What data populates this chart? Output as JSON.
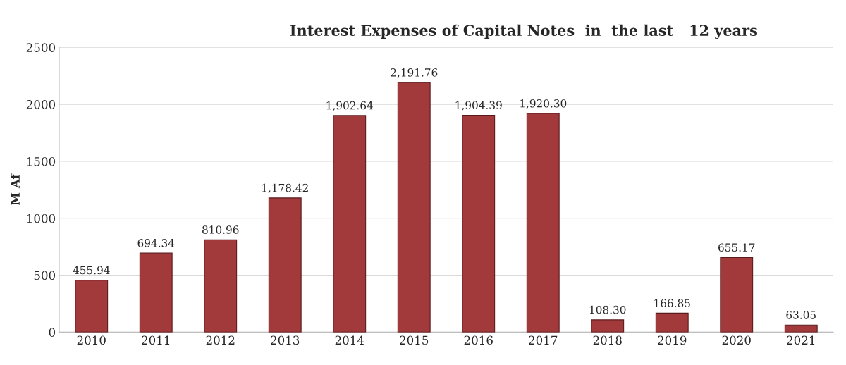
{
  "chart_data": {
    "type": "bar",
    "title": "Interest Expenses of Capital Notes  in  the last   12 years",
    "ylabel": "M Af",
    "categories": [
      "2010",
      "2011",
      "2012",
      "2013",
      "2014",
      "2015",
      "2016",
      "2017",
      "2018",
      "2019",
      "2020",
      "2021"
    ],
    "values": [
      455.94,
      694.34,
      810.96,
      1178.42,
      1902.64,
      2191.76,
      1904.39,
      1920.3,
      108.3,
      166.85,
      655.17,
      63.05
    ],
    "value_labels": [
      "455.94",
      "694.34",
      "810.96",
      "1,178.42",
      "1,902.64",
      "2,191.76",
      "1,904.39",
      "1,920.30",
      "108.30",
      "166.85",
      "655.17",
      "63.05"
    ],
    "color": "#a23a3c",
    "ylim": [
      0,
      2500
    ],
    "yticks": [
      0,
      500,
      1000,
      1500,
      2000,
      2500
    ],
    "grid": "y"
  }
}
